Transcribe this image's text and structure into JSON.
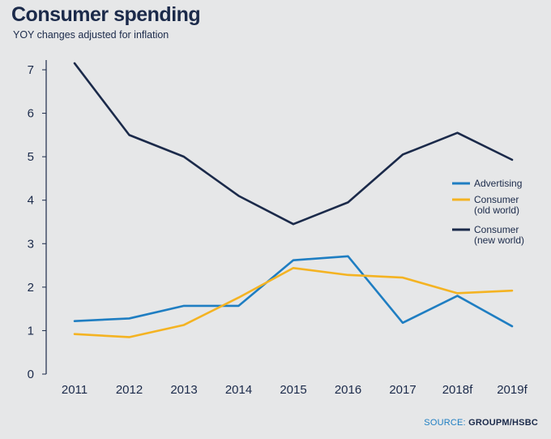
{
  "chart_data": {
    "type": "line",
    "title": "Consumer spending",
    "subtitle": "YOY changes adjusted for inflation",
    "categories": [
      "2011",
      "2012",
      "2013",
      "2014",
      "2015",
      "2016",
      "2017",
      "2018f",
      "2019f"
    ],
    "ylim": [
      0,
      7
    ],
    "yticks": [
      "0",
      "1",
      "2",
      "3",
      "4",
      "5",
      "6",
      "7"
    ],
    "series": [
      {
        "name": "Advertising",
        "legend_lines": [
          "Advertising"
        ],
        "color": "#1f7ec2",
        "values": [
          1.22,
          1.28,
          1.57,
          1.57,
          2.62,
          2.71,
          1.18,
          1.8,
          1.1
        ]
      },
      {
        "name": "Consumer (old world)",
        "legend_lines": [
          "Consumer",
          "(old world)"
        ],
        "color": "#f4b322",
        "values": [
          0.92,
          0.85,
          1.13,
          1.76,
          2.44,
          2.28,
          2.22,
          1.86,
          1.92
        ]
      },
      {
        "name": "Consumer (new world)",
        "legend_lines": [
          "Consumer",
          "(new world)"
        ],
        "color": "#1b2a4a",
        "values": [
          7.15,
          5.5,
          5.0,
          4.1,
          3.45,
          3.95,
          5.05,
          5.55,
          4.93
        ]
      }
    ],
    "legend_position": "right",
    "xlabel": "",
    "ylabel": ""
  },
  "source": {
    "prefix": "SOURCE: ",
    "name": "GROUPM/HSBC"
  }
}
